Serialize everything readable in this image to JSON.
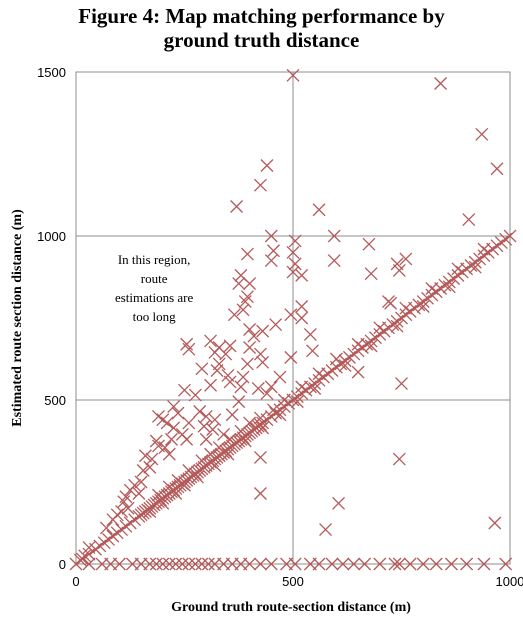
{
  "chart_data": {
    "type": "scatter",
    "title_lines": [
      "Figure 4: Map matching performance by",
      "ground truth distance"
    ],
    "xlabel": "Ground  truth route-section distance (m)",
    "ylabel": "Estimated route section distance (m)",
    "xlim": [
      0,
      1000
    ],
    "ylim": [
      0,
      1500
    ],
    "xticks": [
      0,
      500,
      1000
    ],
    "yticks": [
      0,
      500,
      1000,
      1500
    ],
    "grid": true,
    "legend": "none",
    "marker": "x",
    "color": "#b55a5a",
    "annotation_lines": [
      "In this region,",
      "route",
      "estimations  are",
      "too long"
    ],
    "annotation_at": [
      180,
      915
    ],
    "diagonal_points": [
      [
        15,
        15
      ],
      [
        30,
        30
      ],
      [
        45,
        45
      ],
      [
        55,
        55
      ],
      [
        65,
        65
      ],
      [
        75,
        75
      ],
      [
        85,
        85
      ],
      [
        95,
        95
      ],
      [
        105,
        105
      ],
      [
        115,
        115
      ],
      [
        125,
        125
      ],
      [
        135,
        135
      ],
      [
        145,
        145
      ],
      [
        150,
        150
      ],
      [
        155,
        155
      ],
      [
        160,
        160
      ],
      [
        165,
        165
      ],
      [
        170,
        170
      ],
      [
        175,
        175
      ],
      [
        180,
        180
      ],
      [
        185,
        185
      ],
      [
        190,
        190
      ],
      [
        195,
        195
      ],
      [
        200,
        200
      ],
      [
        205,
        205
      ],
      [
        210,
        210
      ],
      [
        215,
        215
      ],
      [
        220,
        220
      ],
      [
        225,
        225
      ],
      [
        230,
        230
      ],
      [
        235,
        235
      ],
      [
        240,
        240
      ],
      [
        245,
        245
      ],
      [
        250,
        250
      ],
      [
        255,
        255
      ],
      [
        260,
        260
      ],
      [
        265,
        265
      ],
      [
        270,
        270
      ],
      [
        275,
        275
      ],
      [
        280,
        280
      ],
      [
        285,
        285
      ],
      [
        290,
        290
      ],
      [
        295,
        295
      ],
      [
        300,
        300
      ],
      [
        305,
        305
      ],
      [
        310,
        310
      ],
      [
        315,
        315
      ],
      [
        320,
        320
      ],
      [
        325,
        325
      ],
      [
        330,
        330
      ],
      [
        335,
        335
      ],
      [
        340,
        340
      ],
      [
        345,
        345
      ],
      [
        350,
        350
      ],
      [
        355,
        355
      ],
      [
        360,
        360
      ],
      [
        365,
        365
      ],
      [
        370,
        370
      ],
      [
        375,
        375
      ],
      [
        380,
        380
      ],
      [
        385,
        385
      ],
      [
        390,
        390
      ],
      [
        395,
        395
      ],
      [
        400,
        400
      ],
      [
        405,
        405
      ],
      [
        410,
        410
      ],
      [
        415,
        415
      ],
      [
        420,
        420
      ],
      [
        425,
        425
      ],
      [
        430,
        430
      ],
      [
        440,
        440
      ],
      [
        450,
        450
      ],
      [
        460,
        460
      ],
      [
        470,
        470
      ],
      [
        480,
        480
      ],
      [
        490,
        490
      ],
      [
        500,
        500
      ],
      [
        510,
        510
      ],
      [
        520,
        520
      ],
      [
        530,
        530
      ],
      [
        540,
        540
      ],
      [
        550,
        550
      ],
      [
        560,
        560
      ],
      [
        570,
        570
      ],
      [
        580,
        580
      ],
      [
        590,
        590
      ],
      [
        600,
        600
      ],
      [
        610,
        610
      ],
      [
        620,
        620
      ],
      [
        630,
        630
      ],
      [
        640,
        640
      ],
      [
        650,
        650
      ],
      [
        660,
        660
      ],
      [
        670,
        670
      ],
      [
        680,
        680
      ],
      [
        690,
        690
      ],
      [
        700,
        700
      ],
      [
        710,
        710
      ],
      [
        720,
        720
      ],
      [
        730,
        730
      ],
      [
        740,
        740
      ],
      [
        750,
        750
      ],
      [
        760,
        760
      ],
      [
        770,
        770
      ],
      [
        780,
        780
      ],
      [
        790,
        790
      ],
      [
        800,
        800
      ],
      [
        810,
        810
      ],
      [
        820,
        820
      ],
      [
        830,
        830
      ],
      [
        840,
        840
      ],
      [
        850,
        850
      ],
      [
        860,
        860
      ],
      [
        870,
        870
      ],
      [
        880,
        880
      ],
      [
        890,
        890
      ],
      [
        900,
        900
      ],
      [
        910,
        910
      ],
      [
        920,
        920
      ],
      [
        930,
        930
      ],
      [
        940,
        940
      ],
      [
        950,
        950
      ],
      [
        960,
        960
      ],
      [
        970,
        970
      ],
      [
        980,
        980
      ],
      [
        990,
        990
      ],
      [
        1000,
        1000
      ],
      [
        190,
        210
      ],
      [
        215,
        235
      ],
      [
        235,
        255
      ],
      [
        260,
        285
      ],
      [
        290,
        315
      ],
      [
        310,
        335
      ],
      [
        330,
        355
      ],
      [
        355,
        380
      ],
      [
        380,
        405
      ],
      [
        400,
        430
      ],
      [
        425,
        445
      ],
      [
        455,
        470
      ],
      [
        480,
        500
      ],
      [
        520,
        540
      ],
      [
        560,
        580
      ],
      [
        600,
        625
      ],
      [
        650,
        670
      ],
      [
        700,
        720
      ],
      [
        760,
        780
      ],
      [
        820,
        840
      ],
      [
        880,
        900
      ],
      [
        940,
        960
      ],
      [
        170,
        160
      ],
      [
        200,
        185
      ],
      [
        230,
        215
      ],
      [
        250,
        240
      ],
      [
        280,
        265
      ],
      [
        320,
        300
      ],
      [
        350,
        335
      ],
      [
        390,
        375
      ],
      [
        430,
        415
      ],
      [
        470,
        455
      ],
      [
        510,
        495
      ],
      [
        550,
        535
      ],
      [
        620,
        605
      ],
      [
        680,
        665
      ],
      [
        740,
        725
      ],
      [
        800,
        785
      ],
      [
        860,
        845
      ],
      [
        920,
        905
      ]
    ],
    "scatter_points": [
      [
        500,
        1490
      ],
      [
        840,
        1465
      ],
      [
        935,
        1310
      ],
      [
        440,
        1215
      ],
      [
        425,
        1155
      ],
      [
        970,
        1205
      ],
      [
        370,
        1090
      ],
      [
        560,
        1080
      ],
      [
        450,
        1000
      ],
      [
        505,
        985
      ],
      [
        905,
        1050
      ],
      [
        395,
        945
      ],
      [
        455,
        955
      ],
      [
        500,
        950
      ],
      [
        450,
        925
      ],
      [
        505,
        915
      ],
      [
        500,
        890
      ],
      [
        520,
        880
      ],
      [
        595,
        1000
      ],
      [
        595,
        925
      ],
      [
        675,
        975
      ],
      [
        680,
        885
      ],
      [
        740,
        915
      ],
      [
        745,
        895
      ],
      [
        760,
        930
      ],
      [
        720,
        800
      ],
      [
        725,
        795
      ],
      [
        380,
        880
      ],
      [
        375,
        855
      ],
      [
        400,
        855
      ],
      [
        395,
        815
      ],
      [
        390,
        800
      ],
      [
        385,
        775
      ],
      [
        365,
        760
      ],
      [
        400,
        715
      ],
      [
        430,
        710
      ],
      [
        410,
        695
      ],
      [
        520,
        785
      ],
      [
        520,
        750
      ],
      [
        495,
        760
      ],
      [
        330,
        660
      ],
      [
        255,
        670
      ],
      [
        260,
        655
      ],
      [
        310,
        680
      ],
      [
        320,
        645
      ],
      [
        345,
        640
      ],
      [
        330,
        610
      ],
      [
        355,
        665
      ],
      [
        400,
        660
      ],
      [
        395,
        610
      ],
      [
        460,
        730
      ],
      [
        540,
        700
      ],
      [
        545,
        650
      ],
      [
        425,
        640
      ],
      [
        430,
        615
      ],
      [
        495,
        630
      ],
      [
        470,
        570
      ],
      [
        385,
        570
      ],
      [
        350,
        575
      ],
      [
        355,
        555
      ],
      [
        290,
        595
      ],
      [
        325,
        590
      ],
      [
        310,
        545
      ],
      [
        275,
        515
      ],
      [
        250,
        530
      ],
      [
        225,
        480
      ],
      [
        235,
        460
      ],
      [
        190,
        450
      ],
      [
        200,
        440
      ],
      [
        380,
        540
      ],
      [
        375,
        495
      ],
      [
        420,
        535
      ],
      [
        450,
        540
      ],
      [
        440,
        520
      ],
      [
        285,
        465
      ],
      [
        300,
        450
      ],
      [
        320,
        440
      ],
      [
        360,
        455
      ],
      [
        295,
        420
      ],
      [
        315,
        410
      ],
      [
        340,
        395
      ],
      [
        210,
        430
      ],
      [
        225,
        415
      ],
      [
        260,
        430
      ],
      [
        245,
        395
      ],
      [
        255,
        380
      ],
      [
        220,
        380
      ],
      [
        185,
        375
      ],
      [
        190,
        360
      ],
      [
        205,
        355
      ],
      [
        160,
        330
      ],
      [
        175,
        320
      ],
      [
        215,
        335
      ],
      [
        300,
        380
      ],
      [
        170,
        295
      ],
      [
        155,
        285
      ],
      [
        150,
        250
      ],
      [
        135,
        240
      ],
      [
        145,
        215
      ],
      [
        125,
        225
      ],
      [
        115,
        205
      ],
      [
        110,
        190
      ],
      [
        120,
        170
      ],
      [
        105,
        160
      ],
      [
        95,
        150
      ],
      [
        85,
        135
      ],
      [
        30,
        50
      ],
      [
        20,
        25
      ],
      [
        10,
        12
      ],
      [
        70,
        110
      ],
      [
        650,
        585
      ],
      [
        750,
        550
      ],
      [
        745,
        320
      ],
      [
        425,
        325
      ],
      [
        425,
        215
      ],
      [
        605,
        185
      ],
      [
        575,
        105
      ],
      [
        965,
        125
      ],
      [
        0,
        0
      ],
      [
        30,
        0
      ],
      [
        60,
        0
      ],
      [
        80,
        0
      ],
      [
        100,
        0
      ],
      [
        130,
        0
      ],
      [
        150,
        0
      ],
      [
        170,
        0
      ],
      [
        185,
        0
      ],
      [
        200,
        0
      ],
      [
        215,
        0
      ],
      [
        230,
        0
      ],
      [
        245,
        0
      ],
      [
        260,
        0
      ],
      [
        275,
        0
      ],
      [
        290,
        0
      ],
      [
        305,
        0
      ],
      [
        320,
        0
      ],
      [
        340,
        0
      ],
      [
        360,
        0
      ],
      [
        380,
        0
      ],
      [
        400,
        0
      ],
      [
        425,
        0
      ],
      [
        450,
        0
      ],
      [
        485,
        0
      ],
      [
        505,
        0
      ],
      [
        540,
        0
      ],
      [
        560,
        0
      ],
      [
        590,
        0
      ],
      [
        615,
        0
      ],
      [
        640,
        0
      ],
      [
        665,
        0
      ],
      [
        700,
        0
      ],
      [
        735,
        0
      ],
      [
        745,
        0
      ],
      [
        770,
        0
      ],
      [
        800,
        0
      ],
      [
        830,
        0
      ],
      [
        865,
        0
      ],
      [
        900,
        0
      ],
      [
        940,
        0
      ],
      [
        990,
        0
      ]
    ]
  }
}
